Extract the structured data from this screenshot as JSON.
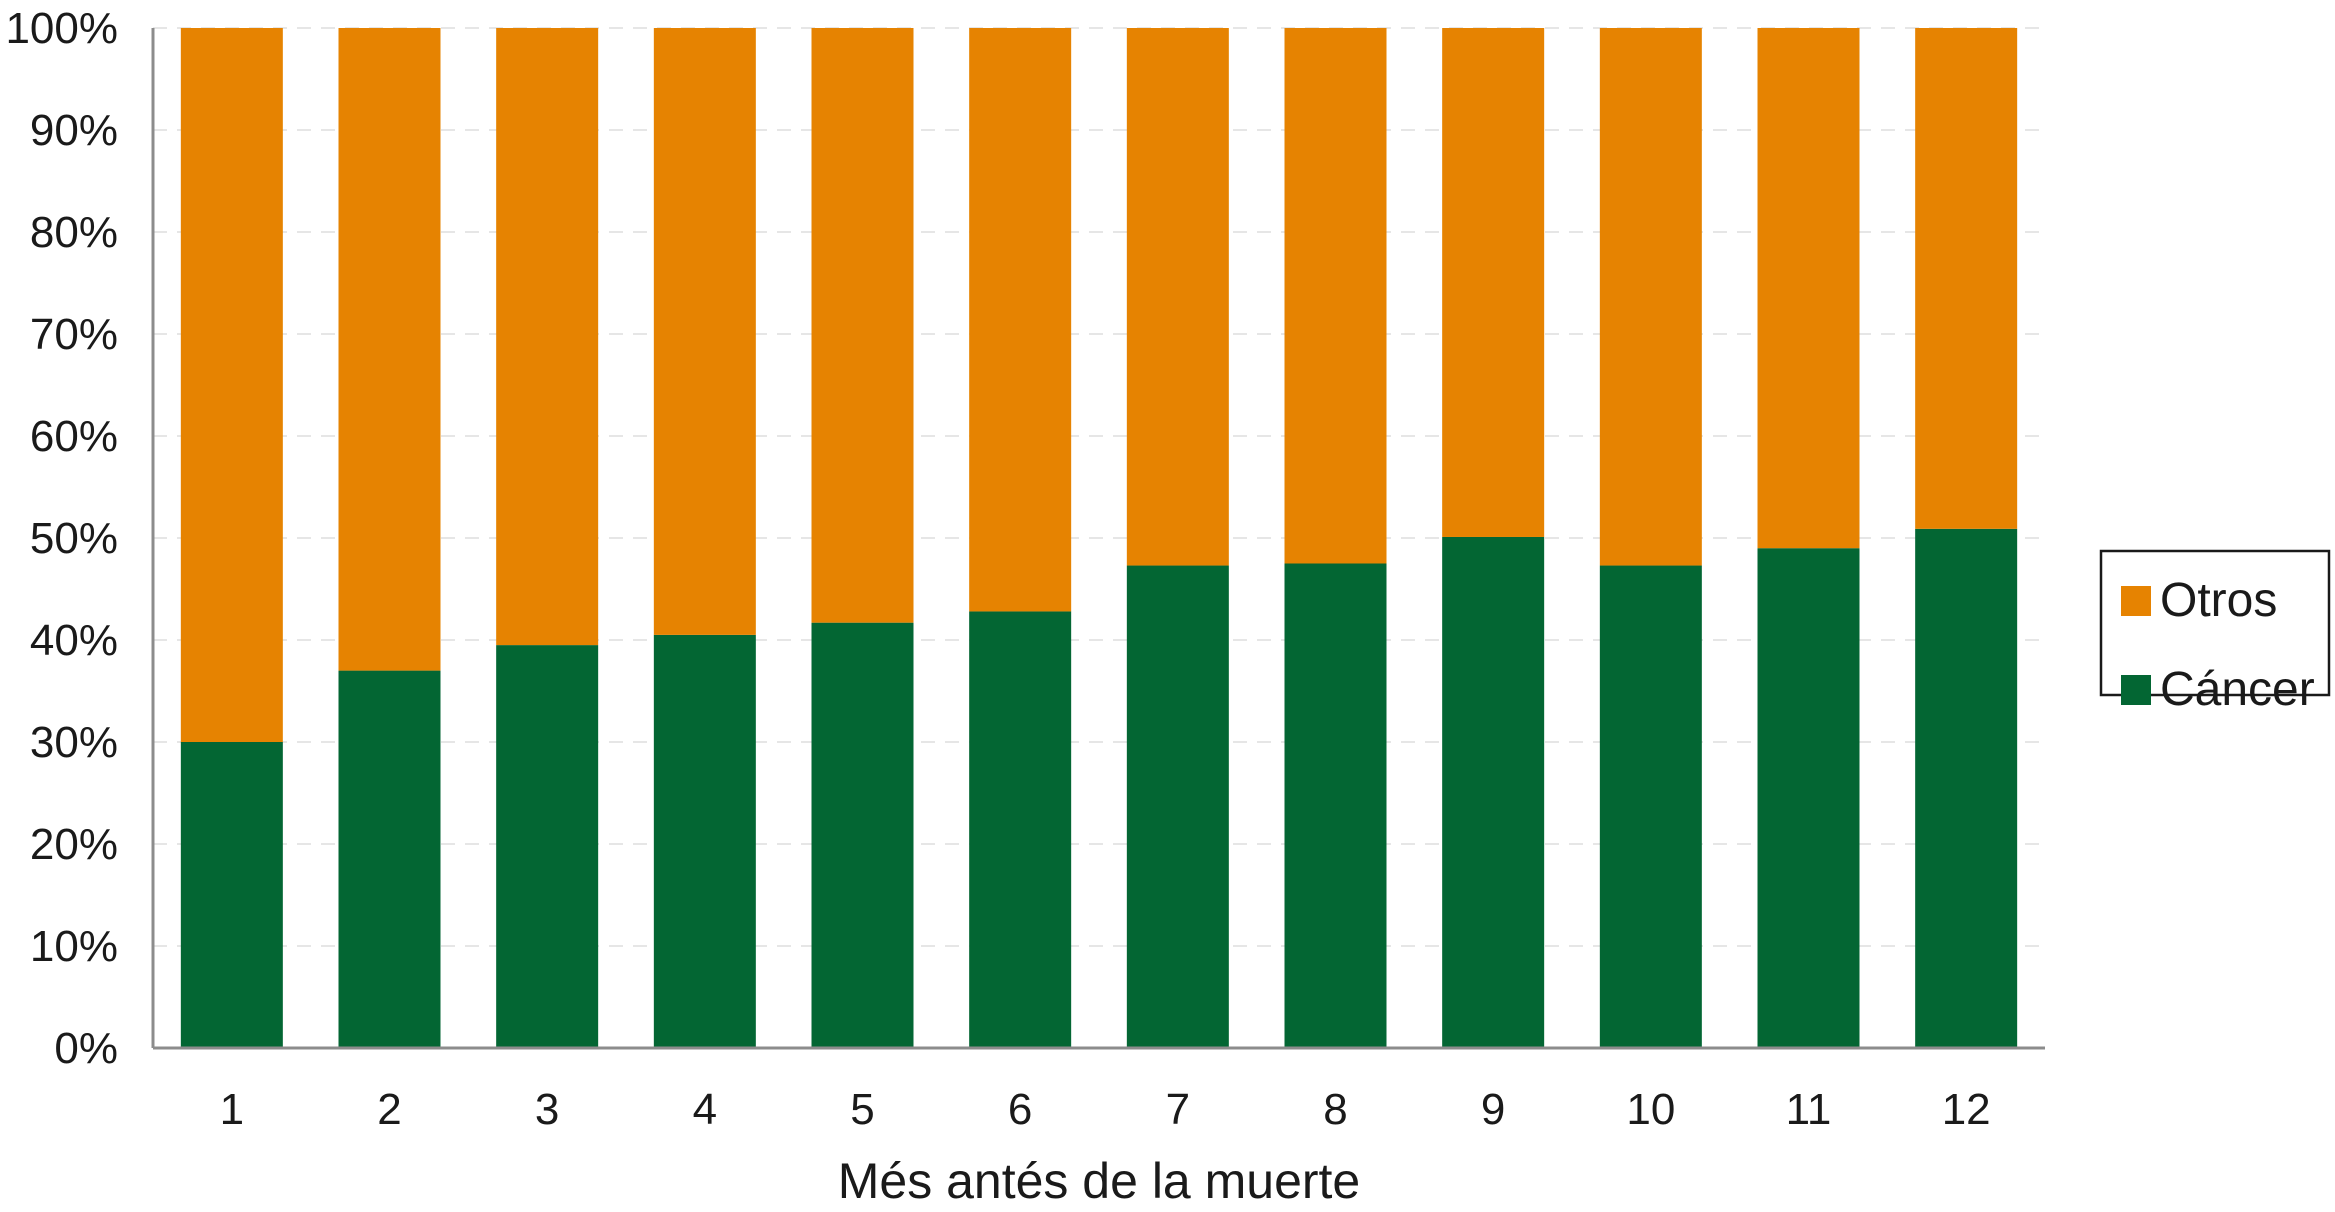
{
  "chart_data": {
    "type": "bar",
    "stacked": true,
    "categories": [
      "1",
      "2",
      "3",
      "4",
      "5",
      "6",
      "7",
      "8",
      "9",
      "10",
      "11",
      "12"
    ],
    "series": [
      {
        "name": "Cáncer",
        "color": "#036633",
        "values": [
          30,
          37,
          39.5,
          40.5,
          41.7,
          42.8,
          47.3,
          47.5,
          50.1,
          47.3,
          49,
          50.9
        ]
      },
      {
        "name": "Otros",
        "color": "#E68301",
        "values": [
          70,
          63,
          60.5,
          59.5,
          58.3,
          57.2,
          52.7,
          52.5,
          49.9,
          52.7,
          51,
          49.1
        ]
      }
    ],
    "title": "",
    "xlabel": "Més antés de la muerte",
    "ylabel": "",
    "ylim": [
      0,
      100
    ],
    "yticks": [
      "0%",
      "10%",
      "20%",
      "30%",
      "40%",
      "50%",
      "60%",
      "70%",
      "80%",
      "90%",
      "100%"
    ],
    "grid": "horizontal-dashed",
    "legend_position": "right",
    "legend_order": [
      "Otros",
      "Cáncer"
    ]
  }
}
